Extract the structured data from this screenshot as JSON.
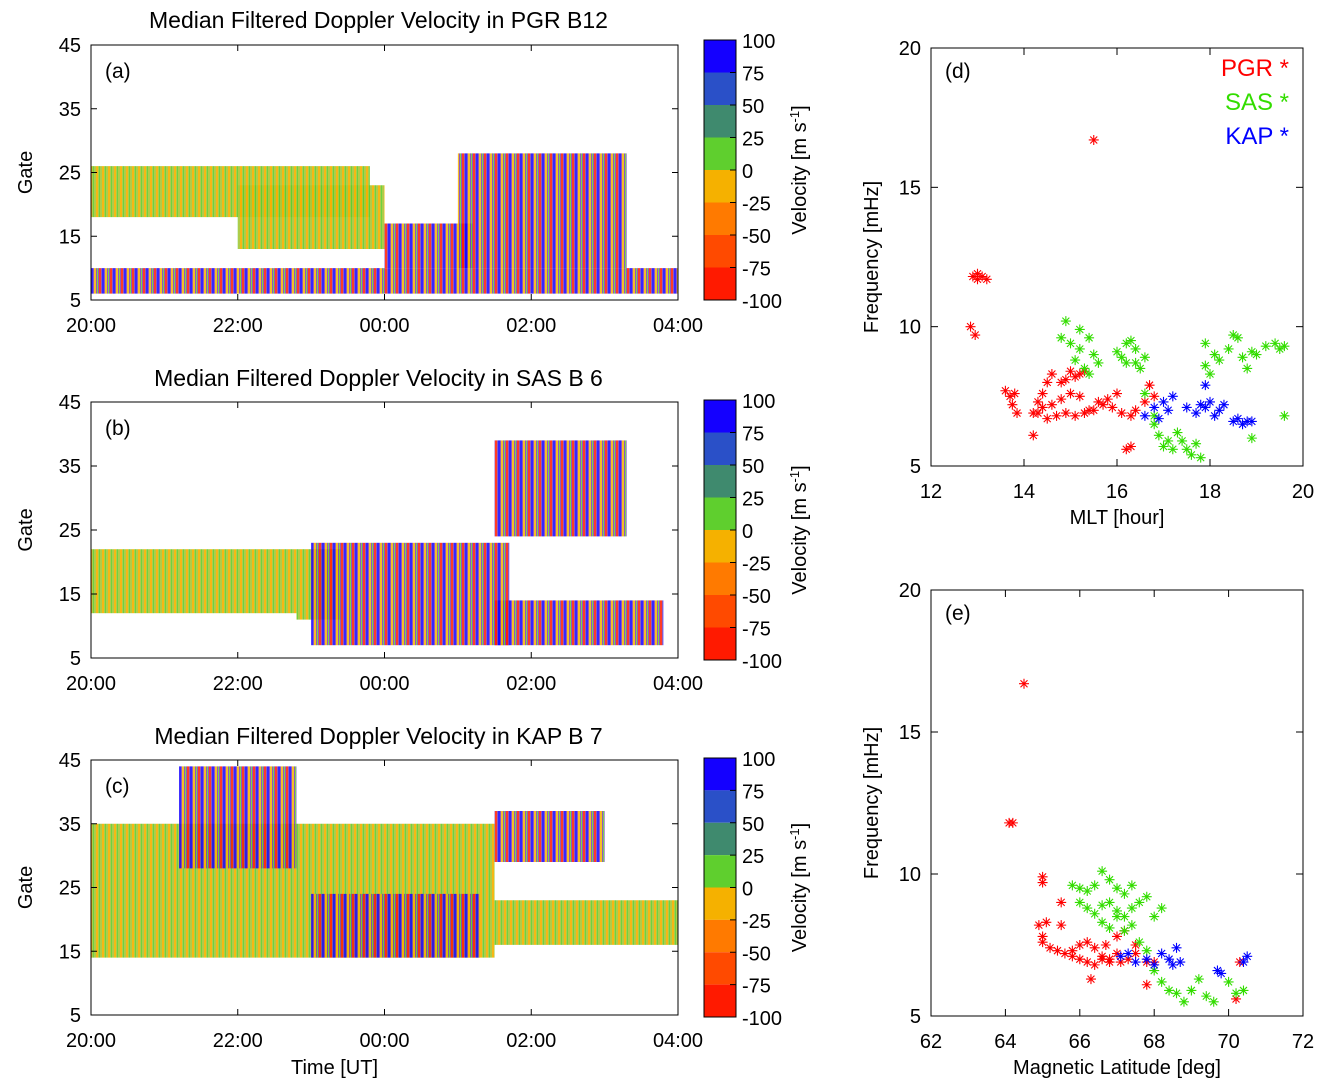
{
  "colorbar": {
    "title": "Velocity [m s",
    "superscript": "-1",
    "title_end": "]",
    "levels": [
      "100",
      "75",
      "50",
      "25",
      "0",
      "-25",
      "-50",
      "-75",
      "-100"
    ],
    "colors": [
      "#1400ff",
      "#2a50c8",
      "#3f8a6e",
      "#5fcf2e",
      "#f5b100",
      "#ff7a00",
      "#ff4a00",
      "#ff1a00"
    ]
  },
  "colors": {
    "PGR": "#ff0000",
    "SAS": "#33dd00",
    "KAP": "#0000ff"
  },
  "chart_data": [
    {
      "type": "heatmap",
      "panel": "(a)",
      "title": "Median Filtered Doppler Velocity in PGR B12",
      "ylabel": "Gate",
      "xlabel": "",
      "xticks": [
        "20:00",
        "22:00",
        "00:00",
        "02:00",
        "04:00"
      ],
      "yticks": [
        "5",
        "15",
        "25",
        "35",
        "45"
      ],
      "xlim_hours_after_2000UT": [
        0,
        8
      ],
      "ylim": [
        5,
        45
      ],
      "colorscale_limits": [
        -100,
        100
      ],
      "regions": [
        {
          "t": [
            0.0,
            3.8
          ],
          "gate": [
            18,
            26
          ],
          "velocity": "0 to 25"
        },
        {
          "t": [
            2.0,
            4.0
          ],
          "gate": [
            13,
            23
          ],
          "velocity": "0 to 25"
        },
        {
          "t": [
            4.0,
            5.2
          ],
          "gate": [
            10,
            17
          ],
          "velocity": "-100 to 100"
        },
        {
          "t": [
            5.0,
            7.3
          ],
          "gate": [
            10,
            28
          ],
          "velocity": "-100 to 100"
        },
        {
          "t": [
            0.0,
            8.0
          ],
          "gate": [
            6,
            10
          ],
          "velocity": "-100 to 100"
        }
      ]
    },
    {
      "type": "heatmap",
      "panel": "(b)",
      "title": "Median Filtered Doppler Velocity in SAS B 6",
      "ylabel": "Gate",
      "xlabel": "",
      "xticks": [
        "20:00",
        "22:00",
        "00:00",
        "02:00",
        "04:00"
      ],
      "yticks": [
        "5",
        "15",
        "25",
        "35",
        "45"
      ],
      "xlim_hours_after_2000UT": [
        0,
        8
      ],
      "ylim": [
        5,
        45
      ],
      "colorscale_limits": [
        -100,
        100
      ],
      "regions": [
        {
          "t": [
            0.0,
            2.8
          ],
          "gate": [
            12,
            22
          ],
          "velocity": "0 to 25"
        },
        {
          "t": [
            2.8,
            3.4
          ],
          "gate": [
            11,
            22
          ],
          "velocity": "0 to 25"
        },
        {
          "t": [
            3.0,
            5.7
          ],
          "gate": [
            7,
            23
          ],
          "velocity": "-100 to 100"
        },
        {
          "t": [
            5.5,
            7.8
          ],
          "gate": [
            7,
            14
          ],
          "velocity": "-100 to 100"
        },
        {
          "t": [
            5.5,
            7.3
          ],
          "gate": [
            24,
            39
          ],
          "velocity": "-100 to 100"
        }
      ]
    },
    {
      "type": "heatmap",
      "panel": "(c)",
      "title": "Median Filtered Doppler Velocity in KAP B 7",
      "ylabel": "Gate",
      "xlabel": "Time [UT]",
      "xticks": [
        "20:00",
        "22:00",
        "00:00",
        "02:00",
        "04:00"
      ],
      "yticks": [
        "5",
        "15",
        "25",
        "35",
        "45"
      ],
      "xlim_hours_after_2000UT": [
        0,
        8
      ],
      "ylim": [
        5,
        45
      ],
      "colorscale_limits": [
        -100,
        100
      ],
      "regions": [
        {
          "t": [
            0.0,
            5.5
          ],
          "gate": [
            14,
            35
          ],
          "velocity": "0 to 25"
        },
        {
          "t": [
            3.0,
            5.3
          ],
          "gate": [
            14,
            24
          ],
          "velocity": "-100 to 100"
        },
        {
          "t": [
            5.5,
            8.0
          ],
          "gate": [
            16,
            23
          ],
          "velocity": "0 to 25"
        },
        {
          "t": [
            1.2,
            2.8
          ],
          "gate": [
            28,
            44
          ],
          "velocity": "-100 to 100"
        },
        {
          "t": [
            5.5,
            7.0
          ],
          "gate": [
            29,
            37
          ],
          "velocity": "-100 to 100"
        }
      ]
    },
    {
      "type": "scatter",
      "panel": "(d)",
      "xlabel": "MLT [hour]",
      "ylabel": "Frequency [mHz]",
      "xlim": [
        12,
        20
      ],
      "ylim": [
        5,
        20
      ],
      "xticks": [
        "12",
        "14",
        "16",
        "18",
        "20"
      ],
      "yticks": [
        "5",
        "10",
        "15",
        "20"
      ],
      "legend": [
        "PGR *",
        "SAS *",
        "KAP *"
      ],
      "legend_position": "top-right",
      "series": [
        {
          "name": "PGR *",
          "x": [
            12.9,
            13.0,
            13.0,
            13.1,
            13.2,
            12.85,
            12.95,
            13.6,
            13.7,
            13.8,
            13.75,
            13.85,
            14.2,
            14.3,
            14.4,
            14.5,
            14.6,
            14.8,
            14.9,
            15.0,
            15.1,
            15.2,
            15.3,
            14.3,
            14.5,
            14.7,
            14.9,
            15.1,
            15.3,
            15.5,
            15.7,
            15.9,
            16.1,
            16.3,
            14.4,
            14.6,
            14.8,
            15.0,
            15.2,
            15.6,
            15.8,
            16.0,
            16.4,
            16.6,
            16.7,
            16.8,
            15.4,
            16.2,
            16.3,
            14.2,
            15.5
          ],
          "y": [
            11.8,
            11.7,
            11.9,
            11.8,
            11.7,
            10.0,
            9.7,
            7.7,
            7.5,
            7.6,
            7.2,
            6.9,
            6.9,
            7.3,
            7.6,
            8.0,
            8.3,
            8.0,
            8.1,
            8.4,
            8.2,
            8.3,
            8.4,
            6.9,
            6.7,
            6.8,
            6.9,
            6.8,
            6.9,
            7.0,
            7.2,
            7.1,
            6.9,
            6.8,
            7.1,
            7.2,
            7.4,
            7.6,
            7.5,
            7.3,
            7.4,
            7.6,
            7.0,
            7.3,
            7.9,
            7.5,
            7.0,
            5.6,
            5.7,
            6.1,
            16.7
          ]
        },
        {
          "name": "SAS *",
          "x": [
            14.8,
            14.9,
            15.0,
            15.1,
            15.2,
            15.3,
            15.4,
            15.5,
            15.6,
            15.2,
            15.4,
            16.0,
            16.1,
            16.2,
            16.3,
            16.4,
            16.5,
            16.6,
            16.2,
            16.4,
            16.6,
            16.8,
            16.9,
            17.0,
            17.2,
            17.4,
            17.6,
            17.8,
            17.5,
            17.7,
            17.9,
            18.0,
            18.2,
            18.4,
            18.6,
            18.8,
            19.0,
            19.2,
            19.4,
            19.5,
            19.6,
            18.5,
            18.7,
            18.9,
            17.9,
            18.1,
            18.9,
            19.6,
            16.8,
            17.1,
            17.3
          ],
          "y": [
            9.6,
            10.2,
            9.4,
            8.8,
            9.2,
            8.5,
            9.6,
            9.0,
            8.7,
            9.9,
            8.3,
            9.1,
            8.9,
            8.7,
            9.5,
            9.2,
            8.5,
            8.9,
            9.4,
            8.7,
            7.6,
            6.8,
            6.1,
            5.7,
            5.6,
            5.9,
            5.4,
            5.3,
            5.6,
            5.8,
            9.4,
            8.3,
            8.8,
            9.2,
            9.6,
            8.5,
            9.0,
            9.3,
            9.4,
            9.2,
            9.3,
            9.7,
            8.9,
            9.1,
            8.6,
            9.0,
            6.0,
            6.8,
            6.5,
            5.9,
            6.2
          ]
        },
        {
          "name": "KAP *",
          "x": [
            16.6,
            16.8,
            16.9,
            17.0,
            17.1,
            17.2,
            17.5,
            17.7,
            17.8,
            17.9,
            18.0,
            18.1,
            18.2,
            18.3,
            18.5,
            18.6,
            18.7,
            18.8,
            18.9,
            17.9
          ],
          "y": [
            6.8,
            7.1,
            6.7,
            7.3,
            7.0,
            7.5,
            7.1,
            6.9,
            7.2,
            7.1,
            7.3,
            6.8,
            7.0,
            7.2,
            6.6,
            6.7,
            6.5,
            6.6,
            6.6,
            7.9
          ]
        }
      ]
    },
    {
      "type": "scatter",
      "panel": "(e)",
      "xlabel": "Magnetic Latitude [deg]",
      "ylabel": "Frequency [mHz]",
      "xlim": [
        62,
        72
      ],
      "ylim": [
        5,
        20
      ],
      "xticks": [
        "62",
        "64",
        "66",
        "68",
        "70",
        "72"
      ],
      "yticks": [
        "5",
        "10",
        "15",
        "20"
      ],
      "series": [
        {
          "name": "PGR *",
          "x": [
            64.5,
            64.1,
            64.2,
            65.0,
            65.0,
            64.9,
            65.1,
            65.5,
            65.0,
            65.5,
            65.8,
            66.0,
            66.2,
            66.4,
            66.6,
            66.8,
            67.0,
            67.3,
            67.5,
            67.8,
            65.0,
            65.2,
            65.4,
            65.6,
            65.8,
            66.0,
            66.2,
            66.4,
            66.6,
            66.8,
            67.0,
            67.2,
            67.5,
            67.8,
            66.3,
            66.7,
            67.1,
            68.0,
            70.2,
            70.3
          ],
          "y": [
            16.7,
            11.8,
            11.8,
            9.9,
            9.7,
            8.2,
            8.3,
            9.0,
            7.8,
            8.2,
            7.1,
            7.0,
            6.9,
            6.8,
            7.0,
            6.9,
            7.2,
            7.0,
            7.2,
            6.9,
            7.6,
            7.4,
            7.3,
            7.2,
            7.3,
            7.5,
            7.6,
            7.4,
            7.1,
            7.0,
            7.8,
            8.0,
            7.5,
            6.1,
            6.3,
            7.5,
            6.9,
            6.9,
            5.6,
            6.9
          ]
        },
        {
          "name": "SAS *",
          "x": [
            65.8,
            66.0,
            66.2,
            66.4,
            66.6,
            66.8,
            67.0,
            67.2,
            67.4,
            67.6,
            67.8,
            68.0,
            68.2,
            66.0,
            66.2,
            66.4,
            66.6,
            66.8,
            67.0,
            67.2,
            67.4,
            66.6,
            66.8,
            67.0,
            67.2,
            67.4,
            67.6,
            67.8,
            68.0,
            68.2,
            68.4,
            68.6,
            68.8,
            69.0,
            69.2,
            69.4,
            69.6,
            70.0,
            70.2,
            70.4
          ],
          "y": [
            9.6,
            9.5,
            9.4,
            9.6,
            10.1,
            9.8,
            9.5,
            9.3,
            9.6,
            9.0,
            9.2,
            8.5,
            8.8,
            9.0,
            8.8,
            8.6,
            8.9,
            9.0,
            8.7,
            8.5,
            8.8,
            8.3,
            8.1,
            8.5,
            8.0,
            8.2,
            7.6,
            7.3,
            6.6,
            6.2,
            5.9,
            5.8,
            5.5,
            5.9,
            6.3,
            5.7,
            5.5,
            6.2,
            5.8,
            5.9
          ]
        },
        {
          "name": "KAP *",
          "x": [
            67.1,
            67.3,
            67.5,
            67.8,
            68.0,
            68.2,
            68.4,
            68.5,
            68.6,
            68.7,
            69.7,
            69.8,
            70.4,
            70.5
          ],
          "y": [
            7.1,
            7.2,
            6.9,
            7.0,
            6.8,
            7.2,
            7.0,
            6.8,
            7.4,
            6.9,
            6.6,
            6.5,
            6.9,
            7.1
          ]
        }
      ]
    }
  ]
}
